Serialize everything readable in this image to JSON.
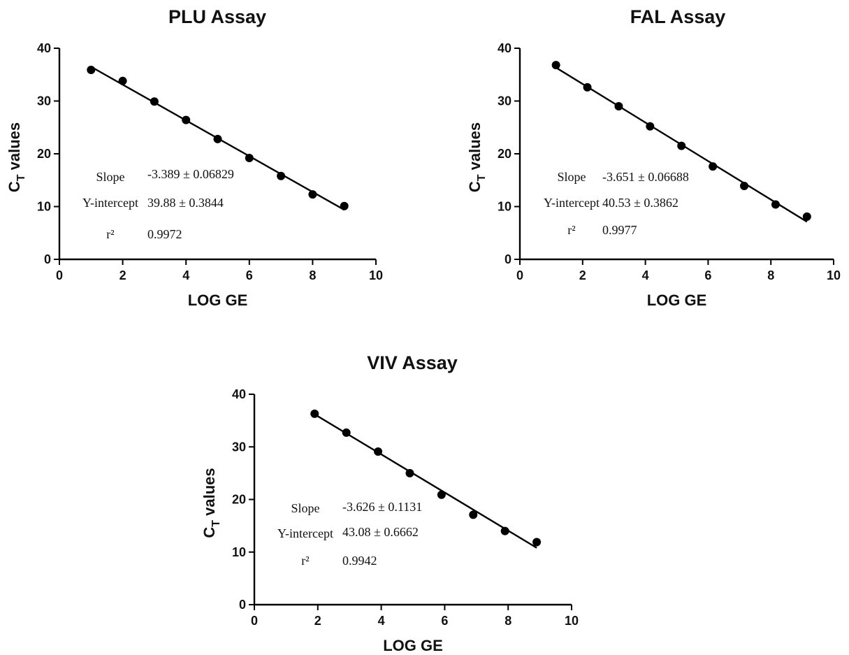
{
  "chart_data": [
    {
      "type": "scatter",
      "title": "PLU Assay",
      "xlabel": "LOG GE",
      "ylabel_main": "C",
      "ylabel_sub": "T",
      "ylabel_rest": " values",
      "xlim": [
        0,
        10
      ],
      "ylim": [
        0,
        40
      ],
      "xticks": [
        "0",
        "2",
        "4",
        "6",
        "8",
        "10"
      ],
      "yticks": [
        "0",
        "10",
        "20",
        "30",
        "40"
      ],
      "x": [
        1,
        2,
        3,
        4,
        5,
        6,
        7,
        8,
        9
      ],
      "y": [
        35.9,
        33.8,
        29.9,
        26.4,
        22.8,
        19.2,
        15.8,
        12.3,
        10.1
      ],
      "fit": {
        "slope": -3.389,
        "intercept": 39.88,
        "x_range": [
          1,
          9
        ]
      },
      "stats": [
        {
          "label": "Slope",
          "value": "-3.389 ± 0.06829"
        },
        {
          "label": "Y-intercept",
          "value": "39.88 ± 0.3844"
        },
        {
          "label": "r²",
          "value": "0.9972"
        }
      ]
    },
    {
      "type": "scatter",
      "title": "FAL Assay",
      "xlabel": "LOG GE",
      "ylabel_main": "C",
      "ylabel_sub": "T",
      "ylabel_rest": " values",
      "xlim": [
        0,
        10
      ],
      "ylim": [
        0,
        40
      ],
      "xticks": [
        "0",
        "2",
        "4",
        "6",
        "8",
        "10"
      ],
      "yticks": [
        "0",
        "10",
        "20",
        "30",
        "40"
      ],
      "x": [
        1.15,
        2.15,
        3.15,
        4.15,
        5.15,
        6.15,
        7.15,
        8.15,
        9.15
      ],
      "y": [
        36.8,
        32.6,
        29.0,
        25.2,
        21.5,
        17.6,
        13.9,
        10.4,
        8.1
      ],
      "fit": {
        "slope": -3.651,
        "intercept": 40.53,
        "x_range": [
          1.15,
          9.15
        ]
      },
      "stats": [
        {
          "label": "Slope",
          "value": "-3.651 ± 0.06688"
        },
        {
          "label": "Y-intercept",
          "value": "40.53 ± 0.3862"
        },
        {
          "label": "r²",
          "value": "0.9977"
        }
      ]
    },
    {
      "type": "scatter",
      "title": "VIV Assay",
      "xlabel": "LOG GE",
      "ylabel_main": "C",
      "ylabel_sub": "T",
      "ylabel_rest": " values",
      "xlim": [
        0,
        10
      ],
      "ylim": [
        0,
        40
      ],
      "xticks": [
        "0",
        "2",
        "4",
        "6",
        "8",
        "10"
      ],
      "yticks": [
        "0",
        "10",
        "20",
        "30",
        "40"
      ],
      "x": [
        1.9,
        2.9,
        3.9,
        4.9,
        5.9,
        6.9,
        7.9,
        8.9
      ],
      "y": [
        36.3,
        32.7,
        29.1,
        25.0,
        20.9,
        17.1,
        14.0,
        11.9
      ],
      "fit": {
        "slope": -3.626,
        "intercept": 43.08,
        "x_range": [
          1.9,
          8.9
        ]
      },
      "stats": [
        {
          "label": "Slope",
          "value": "-3.626 ± 0.1131"
        },
        {
          "label": "Y-intercept",
          "value": "43.08 ± 0.6662"
        },
        {
          "label": "r²",
          "value": "0.9942"
        }
      ]
    }
  ]
}
